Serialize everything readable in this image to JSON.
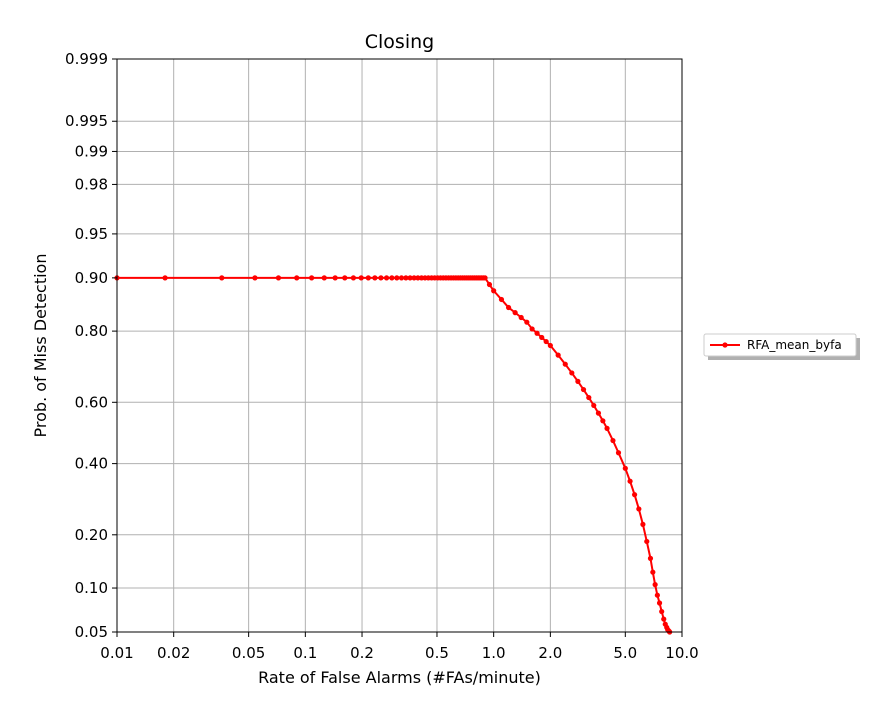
{
  "chart_data": {
    "type": "line",
    "title": "Closing",
    "xlabel": "Rate of False Alarms (#FAs/minute)",
    "ylabel": "Prob. of Miss Detection",
    "x_scale": "log",
    "y_scale": "normal-deviate",
    "xlim": [
      0.01,
      10.0
    ],
    "ylim": [
      0.05,
      0.999
    ],
    "x_ticks": [
      0.01,
      0.02,
      0.05,
      0.1,
      0.2,
      0.5,
      1.0,
      2.0,
      5.0,
      10.0
    ],
    "x_tick_labels": [
      "0.01",
      "0.02",
      "0.05",
      "0.1",
      "0.2",
      "0.5",
      "1.0",
      "2.0",
      "5.0",
      "10.0"
    ],
    "y_ticks": [
      0.05,
      0.1,
      0.2,
      0.4,
      0.6,
      0.8,
      0.9,
      0.95,
      0.98,
      0.99,
      0.995,
      0.999
    ],
    "y_tick_labels": [
      "0.05",
      "0.10",
      "0.20",
      "0.40",
      "0.60",
      "0.80",
      "0.90",
      "0.95",
      "0.98",
      "0.99",
      "0.995",
      "0.999"
    ],
    "grid": true,
    "legend_placement": "outside-right",
    "series": [
      {
        "name": "RFA_mean_byfa",
        "color": "#ff0000",
        "marker": "dot",
        "x": [
          0.01,
          0.018,
          0.036,
          0.054,
          0.072,
          0.09,
          0.108,
          0.126,
          0.144,
          0.162,
          0.18,
          0.198,
          0.216,
          0.234,
          0.252,
          0.27,
          0.288,
          0.306,
          0.324,
          0.342,
          0.36,
          0.378,
          0.396,
          0.414,
          0.432,
          0.45,
          0.468,
          0.486,
          0.504,
          0.522,
          0.54,
          0.558,
          0.576,
          0.594,
          0.612,
          0.63,
          0.648,
          0.666,
          0.684,
          0.702,
          0.72,
          0.738,
          0.756,
          0.774,
          0.792,
          0.81,
          0.828,
          0.846,
          0.864,
          0.882,
          0.9,
          0.95,
          1.0,
          1.1,
          1.2,
          1.3,
          1.4,
          1.5,
          1.6,
          1.7,
          1.8,
          1.9,
          2.0,
          2.2,
          2.4,
          2.6,
          2.8,
          3.0,
          3.2,
          3.4,
          3.6,
          3.8,
          4.0,
          4.3,
          4.6,
          5.0,
          5.3,
          5.6,
          5.9,
          6.2,
          6.5,
          6.8,
          7.0,
          7.2,
          7.4,
          7.6,
          7.8,
          8.0,
          8.15,
          8.3,
          8.4,
          8.5,
          8.55,
          8.6
        ],
        "y": [
          0.9,
          0.9,
          0.9,
          0.9,
          0.9,
          0.9,
          0.9,
          0.9,
          0.9,
          0.9,
          0.9,
          0.9,
          0.9,
          0.9,
          0.9,
          0.9,
          0.9,
          0.9,
          0.9,
          0.9,
          0.9,
          0.9,
          0.9,
          0.9,
          0.9,
          0.9,
          0.9,
          0.9,
          0.9,
          0.9,
          0.9,
          0.9,
          0.9,
          0.9,
          0.9,
          0.9,
          0.9,
          0.9,
          0.9,
          0.9,
          0.9,
          0.9,
          0.9,
          0.9,
          0.9,
          0.9,
          0.9,
          0.9,
          0.9,
          0.9,
          0.9,
          0.89,
          0.88,
          0.865,
          0.85,
          0.84,
          0.83,
          0.82,
          0.805,
          0.795,
          0.785,
          0.775,
          0.765,
          0.74,
          0.715,
          0.69,
          0.665,
          0.64,
          0.615,
          0.59,
          0.565,
          0.54,
          0.515,
          0.475,
          0.435,
          0.385,
          0.345,
          0.305,
          0.265,
          0.225,
          0.185,
          0.15,
          0.125,
          0.105,
          0.09,
          0.08,
          0.07,
          0.062,
          0.057,
          0.054,
          0.052,
          0.051,
          0.0505,
          0.05
        ]
      }
    ]
  }
}
